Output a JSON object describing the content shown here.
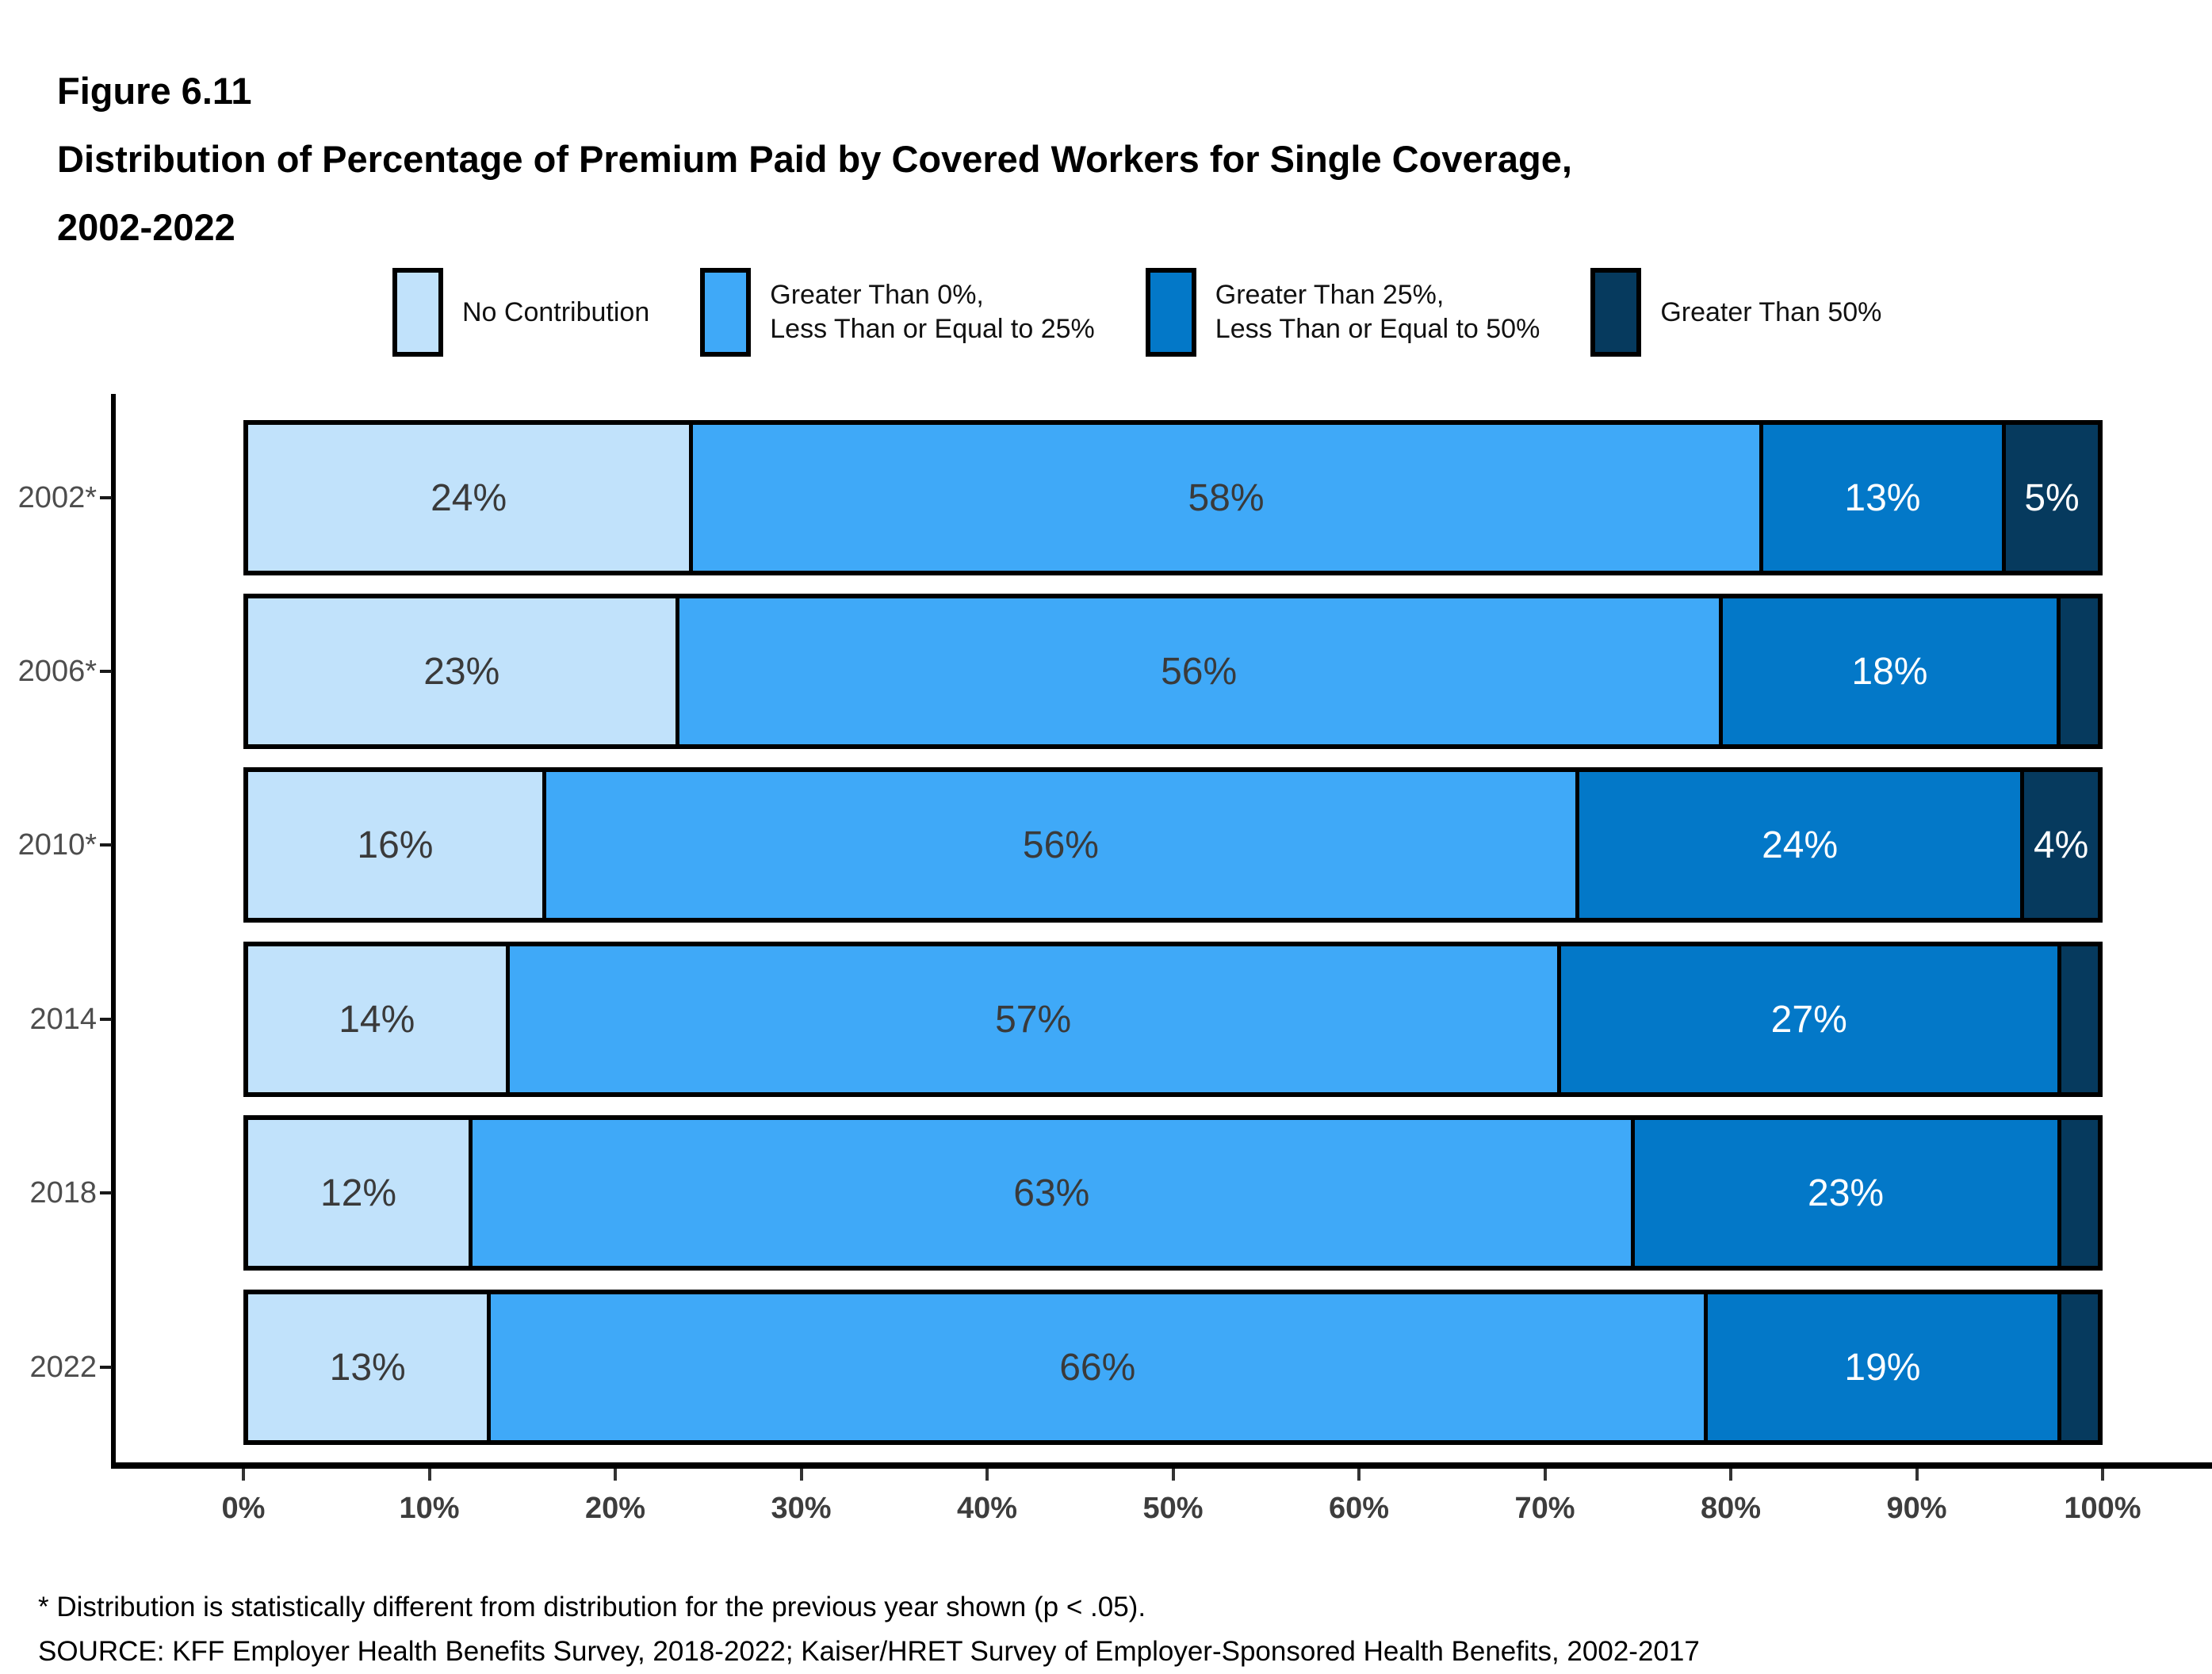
{
  "figure": {
    "number": "Figure 6.11",
    "title_line1": "Distribution of Percentage of Premium Paid by Covered Workers for Single Coverage,",
    "title_line2": "2002-2022"
  },
  "legend": {
    "items": [
      {
        "label_lines": [
          "No Contribution"
        ],
        "color": "#C1E2FB"
      },
      {
        "label_lines": [
          "Greater Than 0%,",
          "Less Than or Equal to 25%"
        ],
        "color": "#3FA9F8"
      },
      {
        "label_lines": [
          "Greater Than 25%,",
          "Less Than or Equal to 50%"
        ],
        "color": "#0378C8"
      },
      {
        "label_lines": [
          "Greater Than 50%"
        ],
        "color": "#063A5E"
      }
    ]
  },
  "chart_data": {
    "type": "bar",
    "orientation": "horizontal-stacked",
    "title": "Distribution of Percentage of Premium Paid by Covered Workers for Single Coverage, 2002-2022",
    "categories": [
      "2002*",
      "2006*",
      "2010*",
      "2014",
      "2018",
      "2022"
    ],
    "series": [
      {
        "name": "No Contribution",
        "color": "#C1E2FB",
        "label_color": "#3A3A3A",
        "values": [
          24,
          23,
          16,
          14,
          12,
          13
        ],
        "labels": [
          "24%",
          "23%",
          "16%",
          "14%",
          "12%",
          "13%"
        ]
      },
      {
        "name": "Greater Than 0%, Less Than or Equal to 25%",
        "color": "#3FA9F8",
        "label_color": "#3A3A3A",
        "values": [
          58,
          56,
          56,
          57,
          63,
          66
        ],
        "labels": [
          "58%",
          "56%",
          "56%",
          "57%",
          "63%",
          "66%"
        ]
      },
      {
        "name": "Greater Than 25%, Less Than or Equal to 50%",
        "color": "#0378C8",
        "label_color": "#FFFFFF",
        "values": [
          13,
          18,
          24,
          27,
          23,
          19
        ],
        "labels": [
          "13%",
          "18%",
          "24%",
          "27%",
          "23%",
          "19%"
        ]
      },
      {
        "name": "Greater Than 50%",
        "color": "#063A5E",
        "label_color": "#FFFFFF",
        "values": [
          5,
          2,
          4,
          2,
          2,
          2
        ],
        "labels": [
          "5%",
          "",
          "4%",
          "",
          "",
          ""
        ]
      }
    ],
    "x_ticks": [
      "0%",
      "10%",
      "20%",
      "30%",
      "40%",
      "50%",
      "60%",
      "70%",
      "80%",
      "90%",
      "100%"
    ],
    "xlim": [
      0,
      100
    ],
    "grid": false,
    "legend_position": "top"
  },
  "footnotes": {
    "asterisk": "* Distribution is statistically different from distribution for the previous year shown (p < .05).",
    "source": "SOURCE: KFF Employer Health Benefits Survey, 2018-2022; Kaiser/HRET Survey of Employer-Sponsored Health Benefits, 2002-2017"
  }
}
